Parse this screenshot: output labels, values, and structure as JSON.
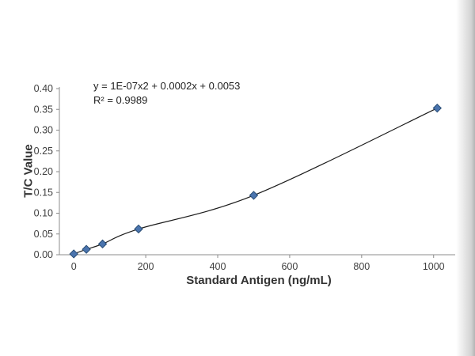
{
  "chart_data": {
    "type": "scatter",
    "title": "",
    "xlabel": "Standard Antigen (ng/mL)",
    "ylabel": "T/C Value",
    "xlim": [
      -40,
      1060
    ],
    "ylim": [
      0,
      0.4
    ],
    "x_ticks": [
      0,
      200,
      400,
      600,
      800,
      1000
    ],
    "y_ticks": [
      0.0,
      0.05,
      0.1,
      0.15,
      0.2,
      0.25,
      0.3,
      0.35,
      0.4
    ],
    "points": [
      [
        0,
        0.002
      ],
      [
        35,
        0.013
      ],
      [
        80,
        0.026
      ],
      [
        180,
        0.062
      ],
      [
        500,
        0.143
      ],
      [
        1010,
        0.353
      ]
    ],
    "equation_line1": "y = 1E-07x2 + 0.0002x + 0.0053",
    "equation_line2": "R² = 0.9989",
    "legend": "none",
    "grid": false,
    "colors": {
      "marker_fill": "#4a74ae",
      "marker_stroke": "#274b73",
      "trendline": "#1c1c1c",
      "axis": "#8c8c8c",
      "tick_label": "#404040",
      "axis_title": "#333333"
    }
  }
}
